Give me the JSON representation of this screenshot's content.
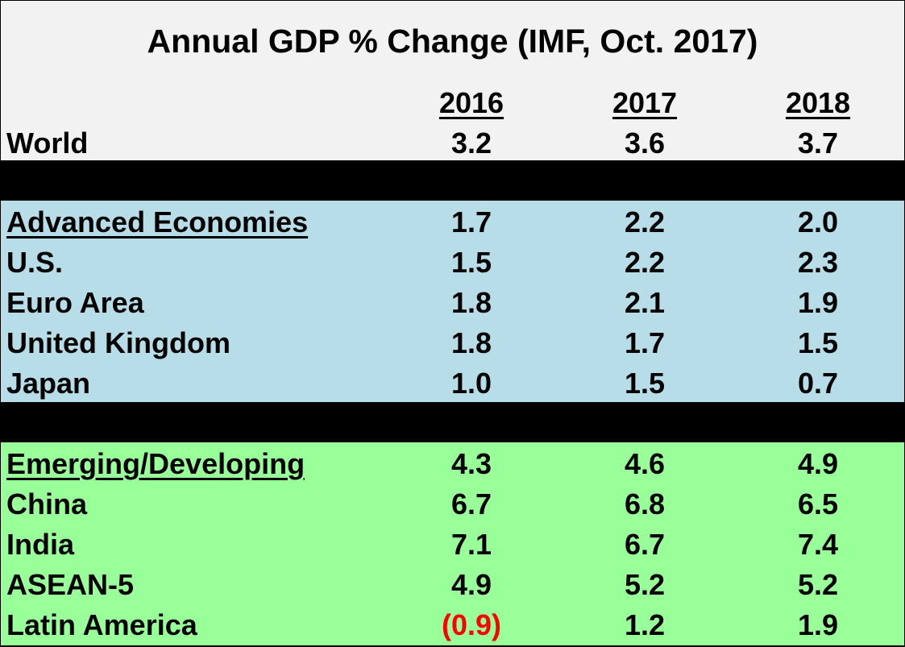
{
  "chart_data": {
    "type": "table",
    "title": "Annual GDP % Change (IMF, Oct. 2017)",
    "columns": [
      "2016",
      "2017",
      "2018"
    ],
    "world": {
      "label": "World",
      "values": [
        "3.2",
        "3.6",
        "3.7"
      ]
    },
    "advanced": {
      "color": "#b7dde8",
      "rows": [
        {
          "label": "Advanced Economies",
          "values": [
            "1.7",
            "2.2",
            "2.0"
          ]
        },
        {
          "label": "U.S.",
          "values": [
            "1.5",
            "2.2",
            "2.3"
          ]
        },
        {
          "label": "Euro Area",
          "values": [
            "1.8",
            "2.1",
            "1.9"
          ]
        },
        {
          "label": "United Kingdom",
          "values": [
            "1.8",
            "1.7",
            "1.5"
          ]
        },
        {
          "label": "Japan",
          "values": [
            "1.0",
            "1.5",
            "0.7"
          ]
        }
      ]
    },
    "emerging": {
      "color": "#99ff99",
      "rows": [
        {
          "label": "Emerging/Developing",
          "values": [
            "4.3",
            "4.6",
            "4.9"
          ]
        },
        {
          "label": "China",
          "values": [
            "6.7",
            "6.8",
            "6.5"
          ]
        },
        {
          "label": "India",
          "values": [
            "7.1",
            "6.7",
            "7.4"
          ]
        },
        {
          "label": "ASEAN-5",
          "values": [
            "4.9",
            "5.2",
            "5.2"
          ]
        },
        {
          "label": "Latin America",
          "values": [
            "(0.9)",
            "1.2",
            "1.9"
          ]
        }
      ]
    },
    "negative_color": "#ff0000",
    "separator_color": "#000000"
  }
}
